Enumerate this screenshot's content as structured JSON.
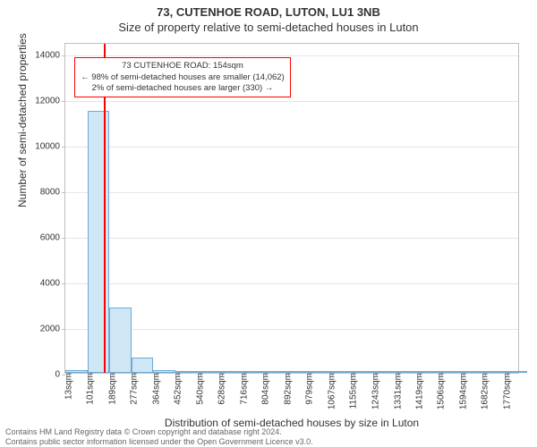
{
  "title_line1": "73, CUTENHOE ROAD, LUTON, LU1 3NB",
  "title_line2": "Size of property relative to semi-detached houses in Luton",
  "ylabel": "Number of semi-detached properties",
  "xlabel": "Distribution of semi-detached houses by size in Luton",
  "chart": {
    "type": "bar",
    "background": "#ffffff",
    "grid_color": "#e6e6e6",
    "border_color": "#bfbfbf",
    "ylim": [
      0,
      14500
    ],
    "ytick_step": 2000,
    "ytick_max": 14000,
    "ytick_fontsize": 10,
    "xtick_values": [
      13,
      101,
      189,
      277,
      364,
      452,
      540,
      628,
      716,
      804,
      892,
      979,
      1067,
      1155,
      1243,
      1331,
      1419,
      1506,
      1594,
      1682,
      1770
    ],
    "xtick_suffix": "sqm",
    "xtick_fontsize": 10,
    "xlim": [
      0,
      1820
    ],
    "bars": {
      "bin_width": 88,
      "bin_starts": [
        0,
        88,
        176,
        264,
        352,
        440,
        528,
        616,
        704,
        792,
        880,
        968,
        1056,
        1144,
        1232,
        1320,
        1408,
        1496,
        1584,
        1672,
        1760
      ],
      "counts": [
        100,
        11500,
        2880,
        680,
        130,
        30,
        15,
        8,
        5,
        4,
        3,
        2,
        2,
        1,
        1,
        1,
        1,
        1,
        1,
        1,
        1
      ],
      "fill": "#cfe7f5",
      "stroke": "#6faad6",
      "stroke_width": 1
    },
    "marker": {
      "value_sqm": 154,
      "color": "#ff0000",
      "width": 2
    },
    "annotation": {
      "line1": "73 CUTENHOE ROAD: 154sqm",
      "line2": "← 98% of semi-detached houses are smaller (14,062)",
      "line3": "2% of semi-detached houses are larger (330) →",
      "border": "#ff0000",
      "bg": "#ffffff",
      "fontcolor": "#333333",
      "x_center_sqm": 520,
      "y_top_count": 13900
    }
  },
  "footer_line1": "Contains HM Land Registry data © Crown copyright and database right 2024.",
  "footer_line2": "Contains public sector information licensed under the Open Government Licence v3.0."
}
